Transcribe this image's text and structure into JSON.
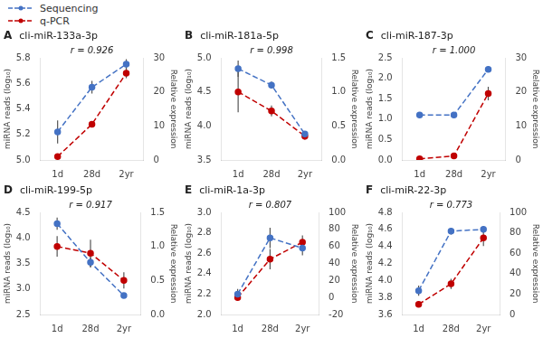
{
  "chart_data": [
    {
      "type": "line",
      "panel_label": "A",
      "title": "cli-miR-133a-3p",
      "annotations": [
        "r = 0.926"
      ],
      "ylabel": "miRNA reads (log₁₀)",
      "y2label": "Relative expression",
      "categories": [
        "1d",
        "28d",
        "2yr"
      ],
      "grid": false,
      "legend": "upper left",
      "series": [
        {
          "name": "Sequencing",
          "color": "#4472C4",
          "values": [
            5.22,
            5.57,
            5.75
          ],
          "errors": [
            0.09,
            0.05,
            0.04
          ],
          "error_color": "#555555",
          "line_style": "dashed",
          "marker": "o"
        },
        {
          "name": "q-PCR",
          "color": "#C00000",
          "values": [
            1.0,
            10.5,
            25.5
          ],
          "errors": [
            0.4,
            0.5,
            1.5
          ],
          "error_color": "#555555",
          "line_style": "dashed",
          "marker": "o",
          "axis": "y2"
        }
      ],
      "ylim": [
        5.0,
        5.8
      ],
      "yticks": [
        {
          "value": 5.0,
          "label": "5.0"
        },
        5.2,
        5.4,
        5.6,
        5.8
      ],
      "y2lim": [
        0,
        30
      ],
      "y2ticks": [
        0,
        10,
        20,
        30
      ]
    },
    {
      "type": "line",
      "panel_label": "B",
      "title": "cli-miR-181a-5p",
      "annotations": [
        "r = 0.998"
      ],
      "ylabel": "miRNA reads (log₁₀)",
      "y2label": "Relative expression",
      "categories": [
        "1d",
        "28d",
        "2yr"
      ],
      "grid": false,
      "series": [
        {
          "name": "Sequencing",
          "color": "#4472C4",
          "values": [
            4.84,
            4.6,
            3.88
          ],
          "errors": [
            0.12,
            0.05,
            0.03
          ],
          "error_color": "#555555",
          "line_style": "dashed",
          "marker": "o"
        },
        {
          "name": "q-PCR",
          "color": "#C00000",
          "values": [
            1.0,
            0.72,
            0.35
          ],
          "errors": [
            0.3,
            0.08,
            0.05
          ],
          "error_color": "#555555",
          "line_style": "dashed",
          "marker": "o",
          "axis": "y2"
        }
      ],
      "ylim": [
        3.5,
        5.0
      ],
      "yticks": [
        3.5,
        {
          "value": 4.0,
          "label": "4.0"
        },
        4.5,
        {
          "value": 5.0,
          "label": "5.0"
        }
      ],
      "y2lim": [
        0.0,
        1.5
      ],
      "y2ticks": [
        {
          "value": 0.0,
          "label": "0.0"
        },
        0.5,
        {
          "value": 1.0,
          "label": "1.0"
        },
        1.5
      ]
    },
    {
      "type": "line",
      "panel_label": "C",
      "title": "cli-miR-187-3p",
      "annotations": [
        "r = 1.000"
      ],
      "ylabel": "miRNA reads (log₁₀)",
      "y2label": "Relative expression",
      "categories": [
        "1d",
        "28d",
        "2yr"
      ],
      "grid": false,
      "series": [
        {
          "name": "Sequencing",
          "color": "#4472C4",
          "values": [
            1.1,
            1.1,
            2.22
          ],
          "errors": [
            0.05,
            0.04,
            0.07
          ],
          "error_color": "#555555",
          "line_style": "dashed",
          "marker": "o"
        },
        {
          "name": "q-PCR",
          "color": "#C00000",
          "values": [
            0.3,
            1.2,
            19.5
          ],
          "errors": [
            0.2,
            0.4,
            2.0
          ],
          "error_color": "#555555",
          "line_style": "dashed",
          "marker": "o",
          "axis": "y2"
        }
      ],
      "ylim": [
        0.0,
        2.5
      ],
      "yticks": [
        {
          "value": 0.0,
          "label": "0.0"
        },
        0.5,
        {
          "value": 1.0,
          "label": "1.0"
        },
        1.5,
        {
          "value": 2.0,
          "label": "2.0"
        },
        2.5
      ],
      "y2lim": [
        0,
        30
      ],
      "y2ticks": [
        0,
        10,
        20,
        30
      ]
    },
    {
      "type": "line",
      "panel_label": "D",
      "title": "cli-miR-199-5p",
      "annotations": [
        "r = 0.917"
      ],
      "ylabel": "miRNA reads (log₁₀)",
      "y2label": "Relative expression",
      "categories": [
        "1d",
        "28d",
        "2yr"
      ],
      "grid": false,
      "series": [
        {
          "name": "Sequencing",
          "color": "#4472C4",
          "values": [
            4.28,
            3.52,
            2.87
          ],
          "errors": [
            0.12,
            0.1,
            0.05
          ],
          "error_color": "#555555",
          "line_style": "dashed",
          "marker": "o"
        },
        {
          "name": "q-PCR",
          "color": "#C00000",
          "values": [
            1.0,
            0.9,
            0.5
          ],
          "errors": [
            0.15,
            0.2,
            0.12
          ],
          "error_color": "#555555",
          "line_style": "dashed",
          "marker": "o",
          "axis": "y2"
        }
      ],
      "ylim": [
        2.5,
        4.5
      ],
      "yticks": [
        2.5,
        {
          "value": 3.0,
          "label": "3.0"
        },
        3.5,
        {
          "value": 4.0,
          "label": "4.0"
        },
        4.5
      ],
      "y2lim": [
        0.0,
        1.5
      ],
      "y2ticks": [
        {
          "value": 0.0,
          "label": "0.0"
        },
        0.5,
        {
          "value": 1.0,
          "label": "1.0"
        },
        1.5
      ]
    },
    {
      "type": "line",
      "panel_label": "E",
      "title": "cli-miR-1a-3p",
      "annotations": [
        "r = 0.807"
      ],
      "ylabel": "miRNA reads (log₁₀)",
      "y2label": "Relative expression",
      "categories": [
        "1d",
        "28d",
        "2yr"
      ],
      "grid": false,
      "series": [
        {
          "name": "Sequencing",
          "color": "#4472C4",
          "values": [
            2.2,
            2.75,
            2.65
          ],
          "errors": [
            0.05,
            0.1,
            0.07
          ],
          "error_color": "#555555",
          "line_style": "dashed",
          "marker": "o"
        },
        {
          "name": "q-PCR",
          "color": "#C00000",
          "values": [
            0.0,
            45.0,
            65.0
          ],
          "errors": [
            2.0,
            12.0,
            8.0
          ],
          "error_color": "#555555",
          "line_style": "dashed",
          "marker": "o",
          "axis": "y2"
        }
      ],
      "ylim": [
        2.0,
        3.0
      ],
      "yticks": [
        {
          "value": 2.0,
          "label": "2.0"
        },
        2.2,
        2.4,
        2.6,
        2.8,
        {
          "value": 3.0,
          "label": "3.0"
        }
      ],
      "y2lim": [
        -20,
        100
      ],
      "y2ticks": [
        -20,
        0,
        20,
        40,
        60,
        80,
        100
      ]
    },
    {
      "type": "line",
      "panel_label": "F",
      "title": "cli-miR-22-3p",
      "annotations": [
        "r = 0.773"
      ],
      "ylabel": "miRNA reads (log₁₀)",
      "y2label": "Relative expression",
      "categories": [
        "1d",
        "28d",
        "2yr"
      ],
      "grid": false,
      "series": [
        {
          "name": "Sequencing",
          "color": "#4472C4",
          "values": [
            3.88,
            4.58,
            4.6
          ],
          "errors": [
            0.06,
            0.04,
            0.04
          ],
          "error_color": "#555555",
          "line_style": "dashed",
          "marker": "o"
        },
        {
          "name": "q-PCR",
          "color": "#C00000",
          "values": [
            10.0,
            30.0,
            75.0
          ],
          "errors": [
            2.0,
            5.0,
            8.0
          ],
          "error_color": "#555555",
          "line_style": "dashed",
          "marker": "o",
          "axis": "y2"
        }
      ],
      "ylim": [
        3.6,
        4.8
      ],
      "yticks": [
        3.6,
        3.8,
        {
          "value": 4.0,
          "label": "4.0"
        },
        4.2,
        4.4,
        4.6,
        4.8
      ],
      "y2lim": [
        0,
        100
      ],
      "y2ticks": [
        0,
        20,
        40,
        60,
        80,
        100
      ]
    }
  ]
}
